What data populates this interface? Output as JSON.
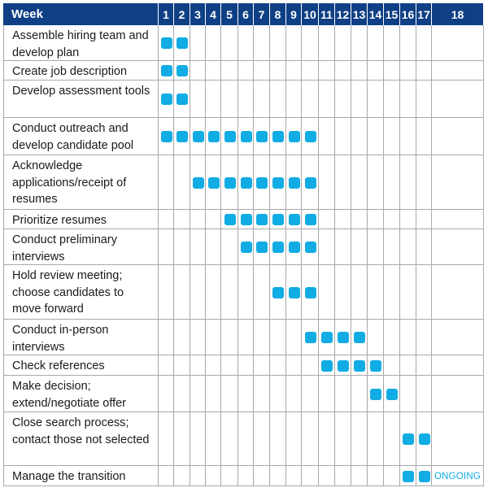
{
  "header": {
    "week_label": "Week",
    "weeks": [
      "1",
      "2",
      "3",
      "4",
      "5",
      "6",
      "7",
      "8",
      "9",
      "10",
      "11",
      "12",
      "13",
      "14",
      "15",
      "16",
      "17",
      "18"
    ]
  },
  "colors": {
    "header_bg": "#0f3f85",
    "mark": "#11ace4",
    "grid": "#a9a9a9"
  },
  "chart_data": {
    "type": "table",
    "tasks": [
      {
        "label": "Assemble hiring team and develop plan",
        "weeks": [
          1,
          2
        ]
      },
      {
        "label": "Create job description",
        "weeks": [
          1,
          2
        ]
      },
      {
        "label": "Develop assessment tools",
        "weeks": [
          1,
          2
        ]
      },
      {
        "label": "Conduct outreach and develop candidate pool",
        "weeks": [
          1,
          2,
          3,
          4,
          5,
          6,
          7,
          8,
          9,
          10
        ]
      },
      {
        "label": "Acknowledge applications/receipt of resumes",
        "weeks": [
          3,
          4,
          5,
          6,
          7,
          8,
          9,
          10
        ]
      },
      {
        "label": "Prioritize resumes",
        "weeks": [
          5,
          6,
          7,
          8,
          9,
          10
        ]
      },
      {
        "label": "Conduct preliminary interviews",
        "weeks": [
          6,
          7,
          8,
          9,
          10
        ]
      },
      {
        "label": "Hold review meeting; choose candidates to move forward",
        "weeks": [
          8,
          9,
          10
        ]
      },
      {
        "label": "Conduct in-person interviews",
        "weeks": [
          10,
          11,
          12,
          13
        ]
      },
      {
        "label": "Check references",
        "weeks": [
          11,
          12,
          13,
          14
        ]
      },
      {
        "label": "Make decision; extend/negotiate offer",
        "weeks": [
          14,
          15
        ]
      },
      {
        "label": "Close search process; contact those not selected",
        "weeks": [
          16,
          17
        ]
      },
      {
        "label": "Manage the transition",
        "weeks": [
          16,
          17
        ],
        "note": "ONGOING"
      }
    ]
  }
}
